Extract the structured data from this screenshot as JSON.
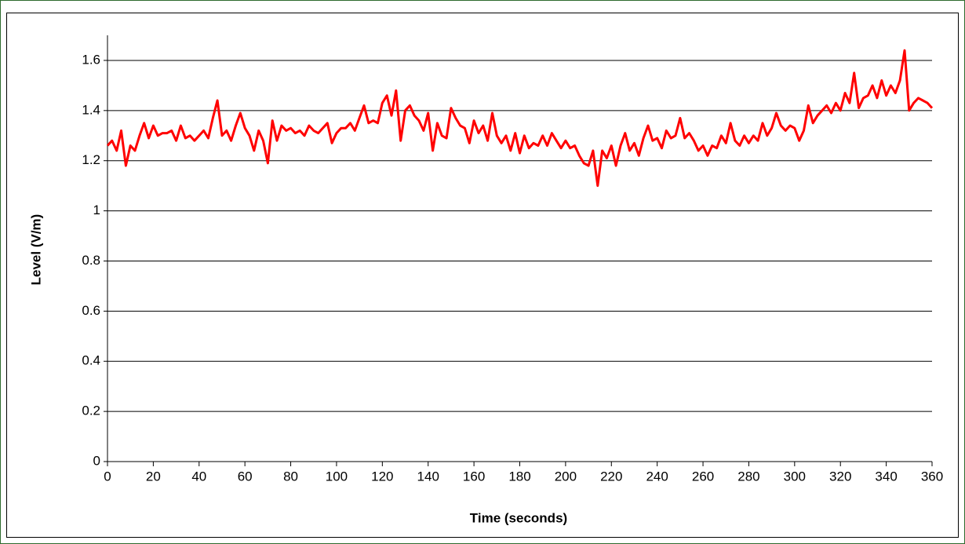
{
  "chart_data": {
    "type": "line",
    "x_label": "Time (seconds)",
    "y_label": "Level (V/m)",
    "x": [
      0,
      2,
      4,
      6,
      8,
      10,
      12,
      14,
      16,
      18,
      20,
      22,
      24,
      26,
      28,
      30,
      32,
      34,
      36,
      38,
      40,
      42,
      44,
      46,
      48,
      50,
      52,
      54,
      56,
      58,
      60,
      62,
      64,
      66,
      68,
      70,
      72,
      74,
      76,
      78,
      80,
      82,
      84,
      86,
      88,
      90,
      92,
      94,
      96,
      98,
      100,
      102,
      104,
      106,
      108,
      110,
      112,
      114,
      116,
      118,
      120,
      122,
      124,
      126,
      128,
      130,
      132,
      134,
      136,
      138,
      140,
      142,
      144,
      146,
      148,
      150,
      152,
      154,
      156,
      158,
      160,
      162,
      164,
      166,
      168,
      170,
      172,
      174,
      176,
      178,
      180,
      182,
      184,
      186,
      188,
      190,
      192,
      194,
      196,
      198,
      200,
      202,
      204,
      206,
      208,
      210,
      212,
      214,
      216,
      218,
      220,
      222,
      224,
      226,
      228,
      230,
      232,
      234,
      236,
      238,
      240,
      242,
      244,
      246,
      248,
      250,
      252,
      254,
      256,
      258,
      260,
      262,
      264,
      266,
      268,
      270,
      272,
      274,
      276,
      278,
      280,
      282,
      284,
      286,
      288,
      290,
      292,
      294,
      296,
      298,
      300,
      302,
      304,
      306,
      308,
      310,
      312,
      314,
      316,
      318,
      320,
      322,
      324,
      326,
      328,
      330,
      332,
      334,
      336,
      338,
      340,
      342,
      344,
      346,
      348,
      350,
      352,
      354,
      356,
      358,
      360
    ],
    "values": [
      1.26,
      1.28,
      1.24,
      1.32,
      1.18,
      1.26,
      1.24,
      1.3,
      1.35,
      1.29,
      1.34,
      1.3,
      1.31,
      1.31,
      1.32,
      1.28,
      1.34,
      1.29,
      1.3,
      1.28,
      1.3,
      1.32,
      1.29,
      1.37,
      1.44,
      1.3,
      1.32,
      1.28,
      1.34,
      1.39,
      1.33,
      1.3,
      1.24,
      1.32,
      1.28,
      1.19,
      1.36,
      1.28,
      1.34,
      1.32,
      1.33,
      1.31,
      1.32,
      1.3,
      1.34,
      1.32,
      1.31,
      1.33,
      1.35,
      1.27,
      1.31,
      1.33,
      1.33,
      1.35,
      1.32,
      1.37,
      1.42,
      1.35,
      1.36,
      1.35,
      1.43,
      1.46,
      1.38,
      1.48,
      1.28,
      1.4,
      1.42,
      1.38,
      1.36,
      1.32,
      1.39,
      1.24,
      1.35,
      1.3,
      1.29,
      1.41,
      1.37,
      1.34,
      1.33,
      1.27,
      1.36,
      1.31,
      1.34,
      1.28,
      1.39,
      1.3,
      1.27,
      1.3,
      1.24,
      1.31,
      1.23,
      1.3,
      1.25,
      1.27,
      1.26,
      1.3,
      1.26,
      1.31,
      1.28,
      1.25,
      1.28,
      1.25,
      1.26,
      1.22,
      1.19,
      1.18,
      1.24,
      1.1,
      1.24,
      1.21,
      1.26,
      1.18,
      1.26,
      1.31,
      1.24,
      1.27,
      1.22,
      1.29,
      1.34,
      1.28,
      1.29,
      1.25,
      1.32,
      1.29,
      1.3,
      1.37,
      1.29,
      1.31,
      1.28,
      1.24,
      1.26,
      1.22,
      1.26,
      1.25,
      1.3,
      1.27,
      1.35,
      1.28,
      1.26,
      1.3,
      1.27,
      1.3,
      1.28,
      1.35,
      1.3,
      1.33,
      1.39,
      1.34,
      1.32,
      1.34,
      1.33,
      1.28,
      1.32,
      1.42,
      1.35,
      1.38,
      1.4,
      1.42,
      1.39,
      1.43,
      1.4,
      1.47,
      1.43,
      1.55,
      1.41,
      1.45,
      1.46,
      1.5,
      1.45,
      1.52,
      1.46,
      1.5,
      1.47,
      1.52,
      1.64,
      1.4,
      1.43,
      1.45,
      1.44,
      1.43,
      1.41
    ],
    "color": "#ff0000",
    "xlim": [
      0,
      360
    ],
    "xticks": [
      0,
      20,
      40,
      60,
      80,
      100,
      120,
      140,
      160,
      180,
      200,
      220,
      240,
      260,
      280,
      300,
      320,
      340,
      360
    ],
    "ylim": [
      0,
      1.7
    ],
    "yticks": [
      0,
      0.2,
      0.4,
      0.6,
      0.8,
      1,
      1.2,
      1.4,
      1.6
    ],
    "grid": true
  }
}
